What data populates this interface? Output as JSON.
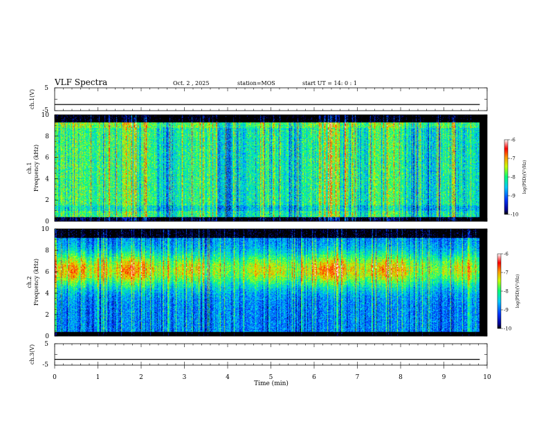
{
  "header": {
    "title": "VLF Spectra",
    "date": "Oct. 2 , 2025",
    "station": "station=MOS",
    "start": "start UT =  14: 0  : 1"
  },
  "chart_data": [
    {
      "type": "line",
      "name": "ch.1 waveform",
      "ylabel": "ch.1(V)",
      "ylim": [
        -5,
        5
      ],
      "yticks": [
        "5",
        "-5"
      ],
      "trace_level": -2.3
    },
    {
      "type": "heatmap",
      "name": "ch.1 spectrogram",
      "ylabel_top": "ch.1",
      "ylabel": "Frequency (kHz)",
      "ylim": [
        0,
        10
      ],
      "yticks": [
        "0",
        "2",
        "4",
        "6",
        "8",
        "10"
      ],
      "colorbar": {
        "label": "log(PSD)(V²/Hz)",
        "range": [
          -10,
          -6
        ],
        "ticks": [
          "-6",
          "-7",
          "-8",
          "-9",
          "-10"
        ]
      }
    },
    {
      "type": "heatmap",
      "name": "ch.2 spectrogram",
      "ylabel_top": "ch.2",
      "ylabel": "Frequency (kHz)",
      "ylim": [
        0,
        10
      ],
      "yticks": [
        "0",
        "2",
        "4",
        "6",
        "8",
        "10"
      ],
      "colorbar": {
        "label": "log(PSD)(V²/Hz)",
        "range": [
          -10,
          -6
        ],
        "ticks": [
          "-6",
          "-7",
          "-8",
          "-9",
          "-10"
        ]
      }
    },
    {
      "type": "line",
      "name": "ch.3 waveform",
      "ylabel": "ch.3(V)",
      "ylim": [
        -5,
        5
      ],
      "yticks": [
        "5",
        "-5"
      ],
      "trace_level": -2.3
    }
  ],
  "xaxis": {
    "label": "Time (min)",
    "xlim": [
      0,
      10
    ],
    "ticks": [
      "0",
      "1",
      "2",
      "3",
      "4",
      "5",
      "6",
      "7",
      "8",
      "9",
      "10"
    ],
    "data_end": 9.83
  }
}
